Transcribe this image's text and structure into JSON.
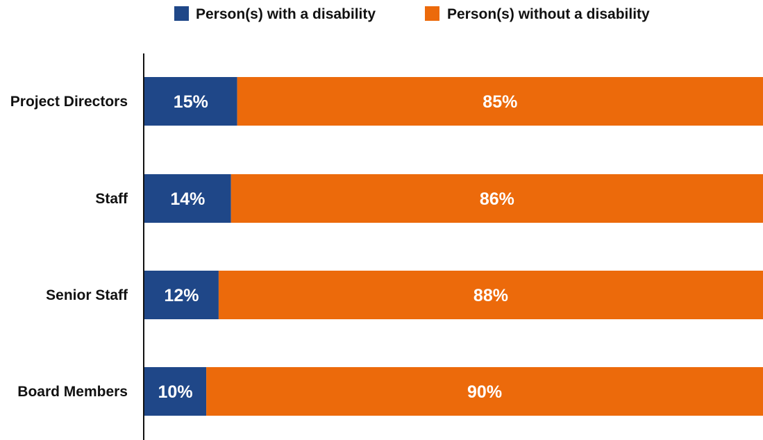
{
  "chart_data": {
    "type": "bar",
    "orientation": "horizontal",
    "stacked": true,
    "categories": [
      "Project Directors",
      "Staff",
      "Senior Staff",
      "Board Members"
    ],
    "series": [
      {
        "name": "Person(s) with a disability",
        "color": "#1f4788",
        "values": [
          15,
          14,
          12,
          10
        ],
        "labels": [
          "15%",
          "14%",
          "12%",
          "10%"
        ]
      },
      {
        "name": "Person(s) without a disability",
        "color": "#ec6a0b",
        "values": [
          85,
          86,
          88,
          90
        ],
        "labels": [
          "85%",
          "86%",
          "88%",
          "90%"
        ]
      }
    ],
    "xlim": [
      0,
      100
    ],
    "legend_position": "top",
    "grid": false
  }
}
